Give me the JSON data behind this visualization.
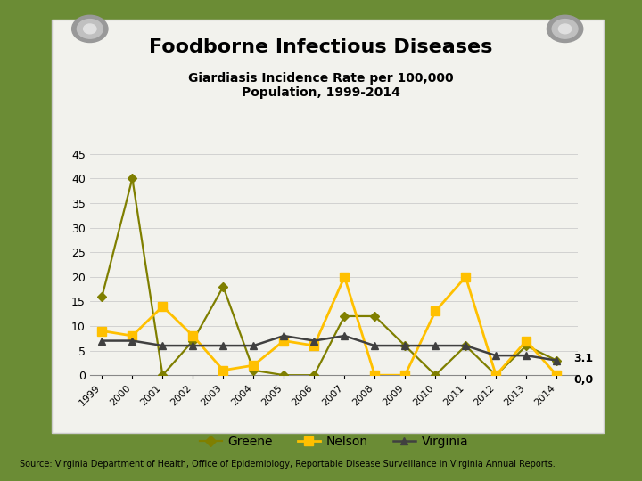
{
  "title1": "Foodborne Infectious Diseases",
  "title2": "Giardiasis Incidence Rate per 100,000\nPopulation, 1999-2014",
  "years": [
    1999,
    2000,
    2001,
    2002,
    2003,
    2004,
    2005,
    2006,
    2007,
    2008,
    2009,
    2010,
    2011,
    2012,
    2013,
    2014
  ],
  "greene": [
    16,
    40,
    0,
    7,
    18,
    1,
    0,
    0,
    12,
    12,
    6,
    0,
    6,
    0,
    6,
    3
  ],
  "nelson": [
    9,
    8,
    14,
    8,
    1,
    2,
    7,
    6,
    20,
    0,
    0,
    13,
    20,
    0,
    7,
    0
  ],
  "virginia": [
    7,
    7,
    6,
    6,
    6,
    6,
    8,
    7,
    8,
    6,
    6,
    6,
    6,
    4,
    4,
    3
  ],
  "greene_color": "#7f7f00",
  "nelson_color": "#FFC000",
  "virginia_color": "#404040",
  "ylim": [
    0,
    45
  ],
  "yticks": [
    0,
    5,
    10,
    15,
    20,
    25,
    30,
    35,
    40,
    45
  ],
  "legend_labels": [
    "Greene",
    "Nelson",
    "Virginia"
  ],
  "source_text": "Source: Virginia Department of Health, Office of Epidemiology, Reportable Disease Surveillance in Virginia Annual Reports.",
  "annotation_virginia": "3.1",
  "annotation_nelson": "0,0",
  "bg_outer": "#6b8c35",
  "bg_paper": "#f2f2ed"
}
